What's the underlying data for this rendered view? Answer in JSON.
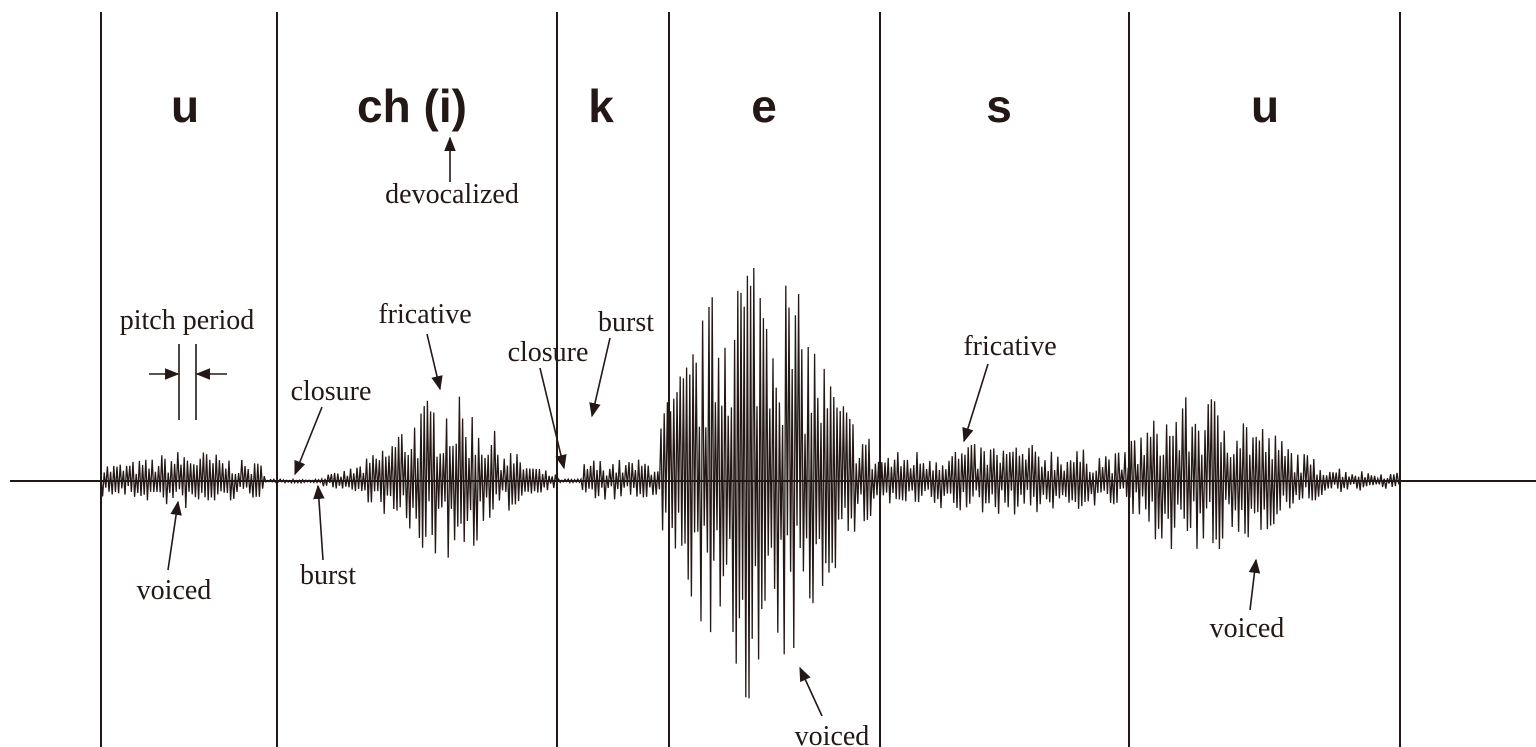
{
  "segments": [
    {
      "label": "u"
    },
    {
      "label": "ch (i)"
    },
    {
      "label": "k"
    },
    {
      "label": "e"
    },
    {
      "label": "s"
    },
    {
      "label": "u"
    }
  ],
  "annotations": [
    {
      "text": "pitch period"
    },
    {
      "text": "voiced"
    },
    {
      "text": "closure"
    },
    {
      "text": "burst"
    },
    {
      "text": "fricative"
    },
    {
      "text": "devocalized"
    },
    {
      "text": "closure"
    },
    {
      "text": "burst"
    },
    {
      "text": "voiced"
    },
    {
      "text": "fricative"
    },
    {
      "text": "voiced"
    }
  ]
}
